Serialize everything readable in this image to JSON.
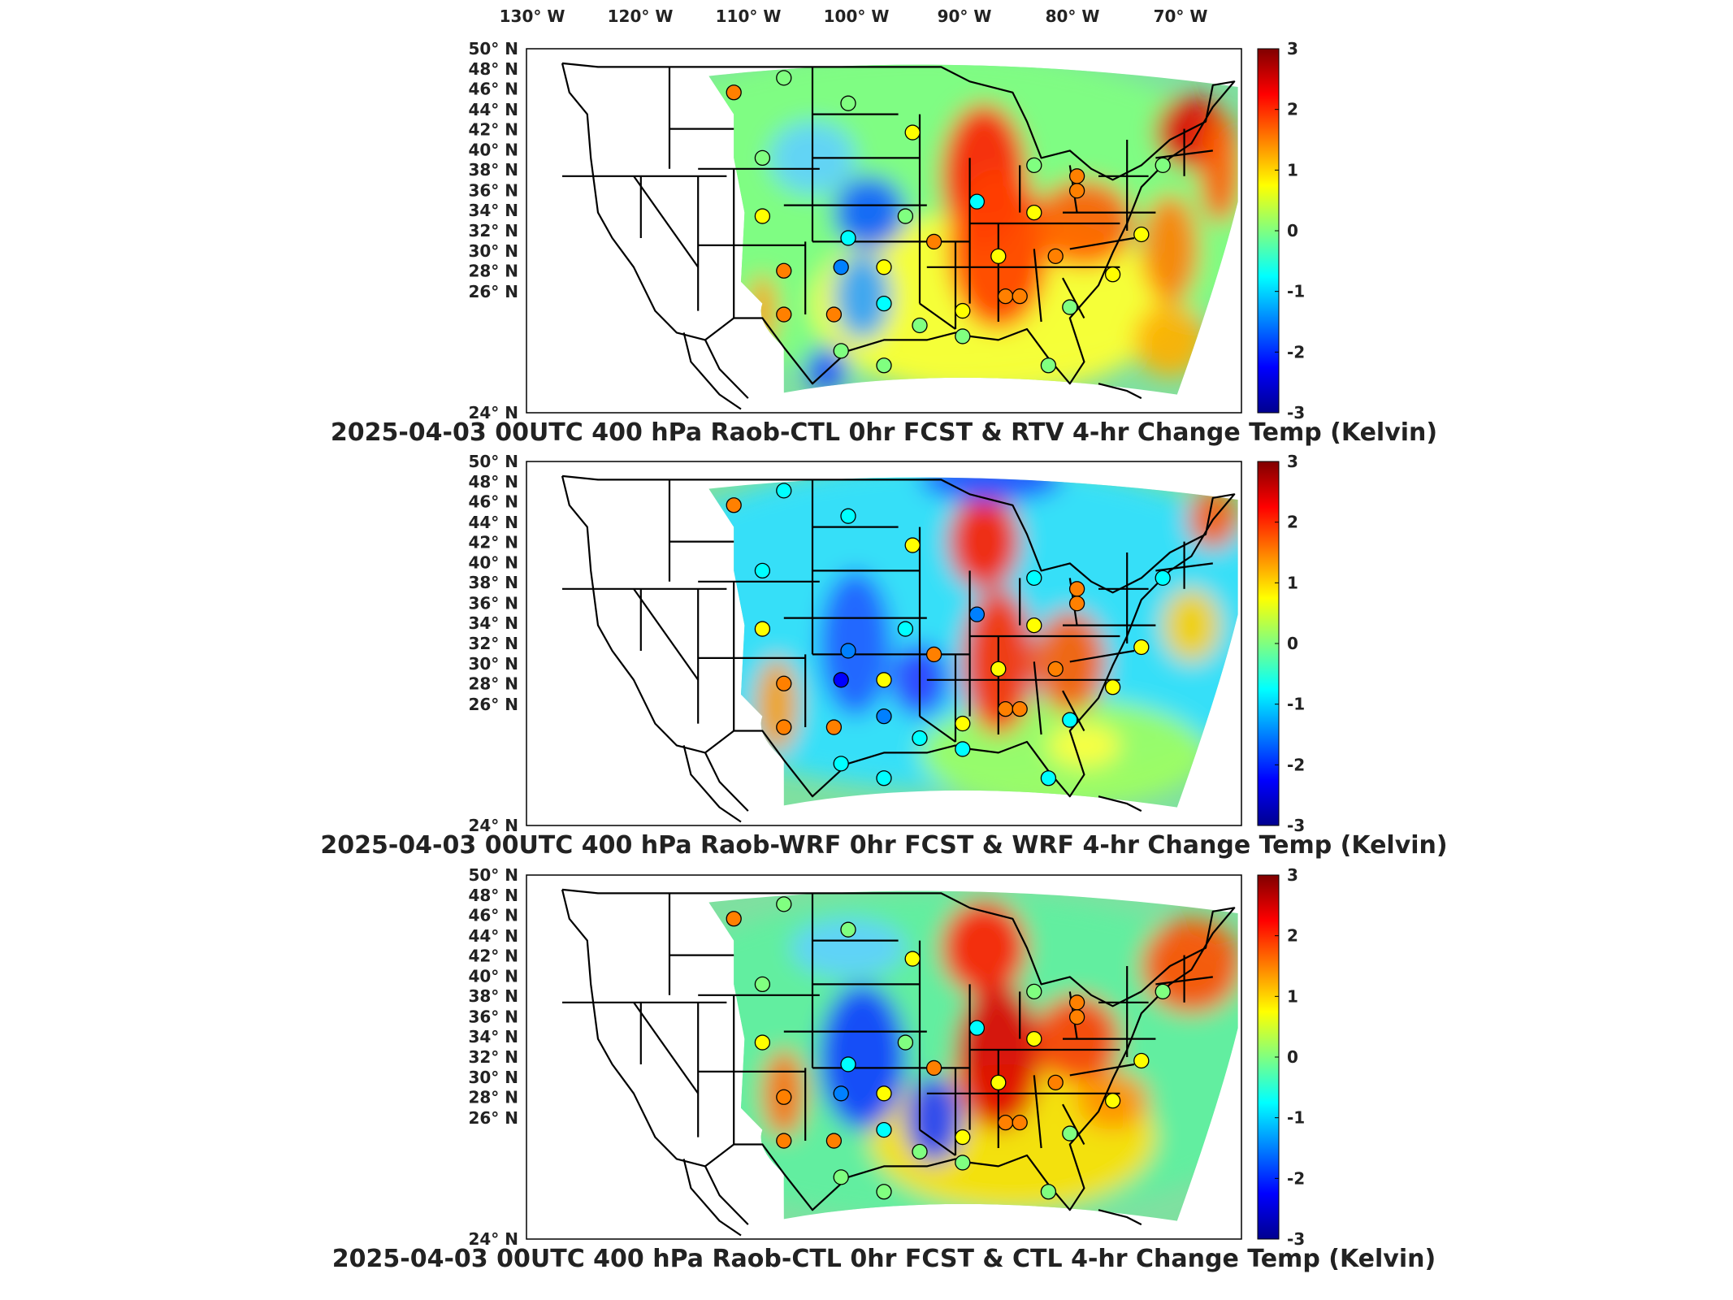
{
  "lon_labels": [
    "130° W",
    "120° W",
    "110° W",
    "100° W",
    "90° W",
    "80° W",
    "70° W"
  ],
  "lat_labels": [
    "50° N",
    "48° N",
    "46° N",
    "44° N",
    "42° N",
    "40° N",
    "38° N",
    "36° N",
    "34° N",
    "32° N",
    "30° N",
    "28° N",
    "26° N",
    "24° N"
  ],
  "colorbar_ticks": [
    "3",
    "2",
    "1",
    "0",
    "-1",
    "-2",
    "-3"
  ],
  "colormap": [
    "#00008f",
    "#0000ff",
    "#0080ff",
    "#00ffff",
    "#80ff80",
    "#ffff00",
    "#ff8000",
    "#ff0000",
    "#800000"
  ],
  "panels": [
    {
      "title": "2025-04-03 00UTC 400 hPa Raob-CTL 0hr FCST & RTV 4-hr Change Temp (Kelvin)"
    },
    {
      "title": "2025-04-03 00UTC 400 hPa Raob-WRF 0hr FCST & WRF 4-hr Change Temp (Kelvin)"
    },
    {
      "title": "2025-04-03 00UTC 400 hPa Raob-CTL 0hr FCST & CTL 4-hr Change Temp (Kelvin)"
    }
  ]
}
